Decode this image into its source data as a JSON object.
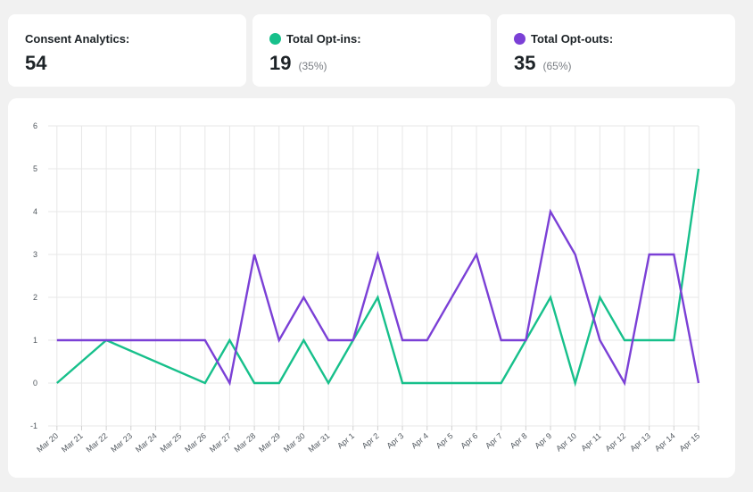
{
  "stats": {
    "total": {
      "label": "Consent Analytics:",
      "value": "54"
    },
    "optins": {
      "label": "Total Opt-ins:",
      "value": "19",
      "pct": "(35%)",
      "color": "#17c08b"
    },
    "optouts": {
      "label": "Total Opt-outs:",
      "value": "35",
      "pct": "(65%)",
      "color": "#7b40d6"
    }
  },
  "chart_data": {
    "type": "line",
    "categories": [
      "Mar 20",
      "Mar 21",
      "Mar 22",
      "Mar 23",
      "Mar 24",
      "Mar 25",
      "Mar 26",
      "Mar 27",
      "Mar 28",
      "Mar 29",
      "Mar 30",
      "Mar 31",
      "Apr 1",
      "Apr 2",
      "Apr 3",
      "Apr 4",
      "Apr 5",
      "Apr 6",
      "Apr 7",
      "Apr 8",
      "Apr 9",
      "Apr 10",
      "Apr 11",
      "Apr 12",
      "Apr 13",
      "Apr 14",
      "Apr 15"
    ],
    "series": [
      {
        "name": "Total Opt-ins",
        "color": "#17c08b",
        "values": [
          0,
          null,
          1,
          null,
          null,
          null,
          0,
          1,
          0,
          0,
          1,
          0,
          1,
          2,
          0,
          0,
          null,
          0,
          0,
          1,
          2,
          0,
          2,
          1,
          1,
          1,
          5
        ]
      },
      {
        "name": "Total Opt-outs",
        "color": "#7b40d6",
        "values": [
          1,
          null,
          1,
          null,
          null,
          null,
          1,
          0,
          3,
          1,
          2,
          1,
          1,
          3,
          1,
          1,
          null,
          3,
          1,
          1,
          4,
          3,
          1,
          0,
          3,
          3,
          0
        ]
      }
    ],
    "ylim": [
      -1,
      6
    ],
    "yticks": [
      -1,
      0,
      1,
      2,
      3,
      4,
      5,
      6
    ],
    "grid": true
  }
}
